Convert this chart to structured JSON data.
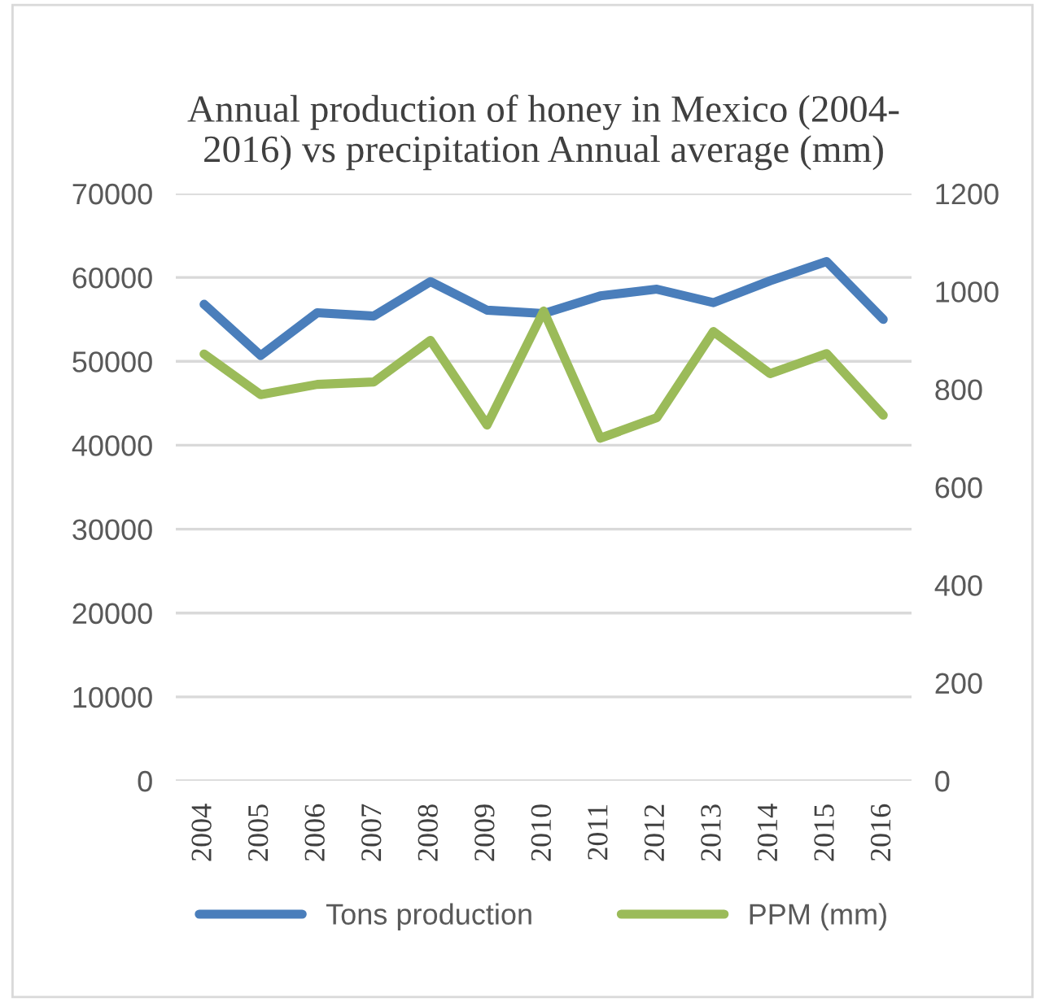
{
  "chart_data": {
    "type": "line",
    "title": "Annual production of honey in Mexico (2004-\n2016) vs precipitation Annual average (mm)",
    "categories": [
      "2004",
      "2005",
      "2006",
      "2007",
      "2008",
      "2009",
      "2010",
      "2011",
      "2012",
      "2013",
      "2014",
      "2015",
      "2016"
    ],
    "series": [
      {
        "name": "Tons production",
        "color": "#4a7ebb",
        "values": [
          56800,
          50700,
          55800,
          55400,
          59500,
          56100,
          55700,
          57800,
          58600,
          57000,
          59600,
          61900,
          55000
        ]
      },
      {
        "name": "PPM (mm)",
        "color": "#9bbb59",
        "axis": "y2",
        "values": [
          872,
          789,
          810,
          815,
          900,
          727,
          960,
          700,
          742,
          918,
          832,
          873,
          747
        ]
      }
    ],
    "ylim": [
      0,
      70000
    ],
    "yticks": [
      0,
      10000,
      20000,
      30000,
      40000,
      50000,
      60000,
      70000
    ],
    "y2lim": [
      0,
      1200
    ],
    "y2ticks": [
      0,
      200,
      400,
      600,
      800,
      1000,
      1200
    ],
    "grid": "y",
    "legend": "bottom",
    "marker": "none",
    "line_style": "solid"
  }
}
